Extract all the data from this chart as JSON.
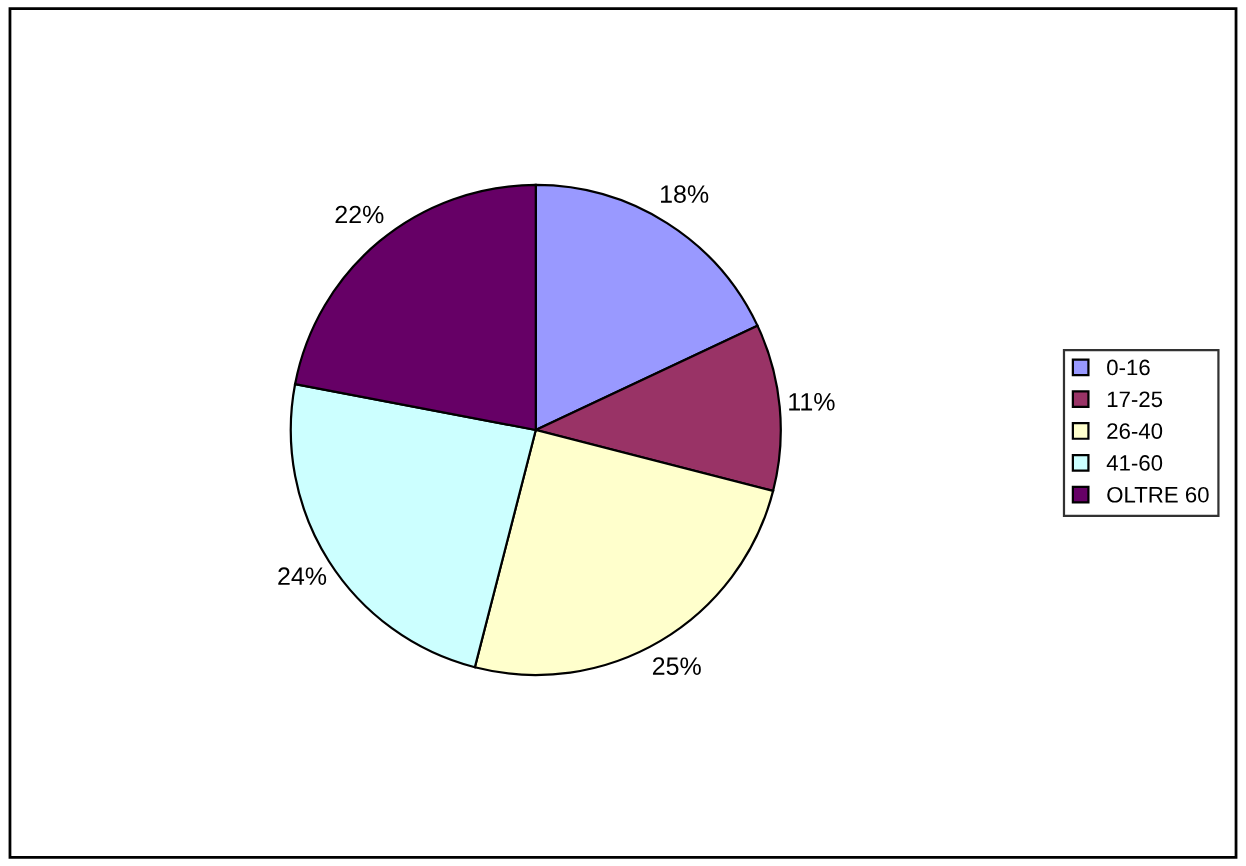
{
  "chart_data": {
    "type": "pie",
    "categories": [
      "0-16",
      "17-25",
      "26-40",
      "41-60",
      "OLTRE 60"
    ],
    "values": [
      18,
      11,
      25,
      24,
      22
    ],
    "colors": [
      "#9999ff",
      "#993366",
      "#ffffcc",
      "#ccffff",
      "#660066"
    ],
    "value_labels": [
      "18%",
      "11%",
      "25%",
      "24%",
      "22%"
    ],
    "legend": "right"
  }
}
